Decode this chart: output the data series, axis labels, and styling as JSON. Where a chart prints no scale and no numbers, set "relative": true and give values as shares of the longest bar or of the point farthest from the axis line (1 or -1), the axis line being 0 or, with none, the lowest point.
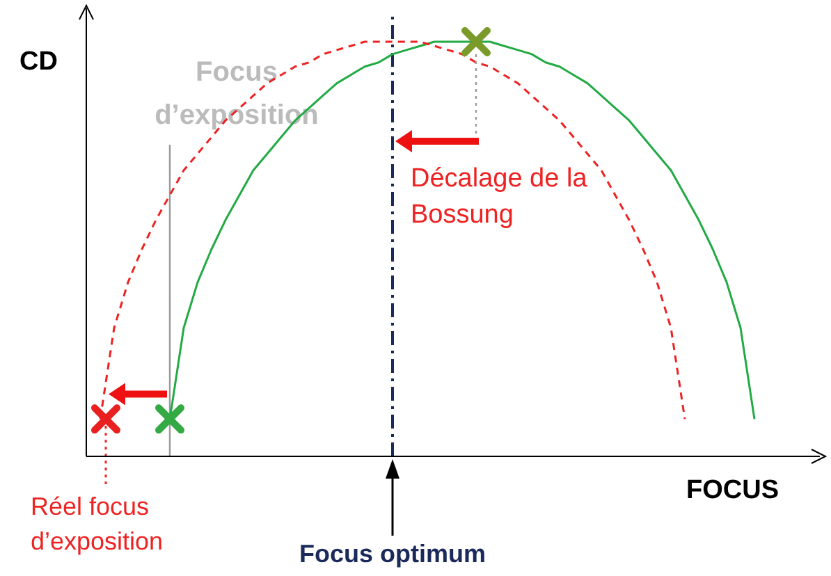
{
  "chart_data": {
    "type": "line",
    "relative": true,
    "xlabel": "FOCUS",
    "ylabel": "CD",
    "categories": [
      null,
      null,
      null,
      null,
      null,
      null,
      null,
      null,
      null,
      null,
      null,
      null,
      null,
      null,
      null,
      null,
      null,
      null,
      null,
      null,
      null,
      null,
      null,
      null,
      null,
      null,
      null,
      null,
      null,
      null,
      null,
      null,
      null,
      null,
      null,
      null,
      null,
      null,
      null,
      null,
      null,
      null,
      null,
      null,
      null,
      null,
      null,
      null
    ],
    "series": [
      {
        "color": "#22aa44",
        "line_style": "solid",
        "values": [
          null,
          null,
          null,
          null,
          null,
          0.09,
          0.31,
          0.42,
          0.5,
          0.57,
          0.63,
          0.69,
          0.73,
          0.77,
          0.81,
          0.84,
          0.87,
          0.9,
          0.92,
          0.94,
          0.95,
          0.97,
          0.98,
          0.99,
          1,
          1,
          1,
          1,
          1,
          0.99,
          0.98,
          0.97,
          0.95,
          0.94,
          0.92,
          0.9,
          0.87,
          0.84,
          0.81,
          0.77,
          0.73,
          0.69,
          0.63,
          0.57,
          0.5,
          0.42,
          0.31,
          0.09
        ]
      },
      {
        "color": "#ee2222",
        "line_style": "dashed",
        "values": [
          0.09,
          0.31,
          0.42,
          0.5,
          0.57,
          0.63,
          0.69,
          0.73,
          0.77,
          0.81,
          0.84,
          0.87,
          0.9,
          0.92,
          0.94,
          0.95,
          0.97,
          0.98,
          0.99,
          1,
          1,
          1,
          1,
          1,
          0.99,
          0.98,
          0.97,
          0.95,
          0.94,
          0.92,
          0.9,
          0.87,
          0.84,
          0.81,
          0.77,
          0.73,
          0.69,
          0.63,
          0.57,
          0.5,
          0.42,
          0.31,
          0.09,
          null,
          null,
          null,
          null,
          null
        ]
      }
    ],
    "annotations": [
      "Focus optimum",
      "Focus\nd’exposition",
      "Réel focus\nd’exposition",
      "Décalage de la\nBossung"
    ]
  }
}
